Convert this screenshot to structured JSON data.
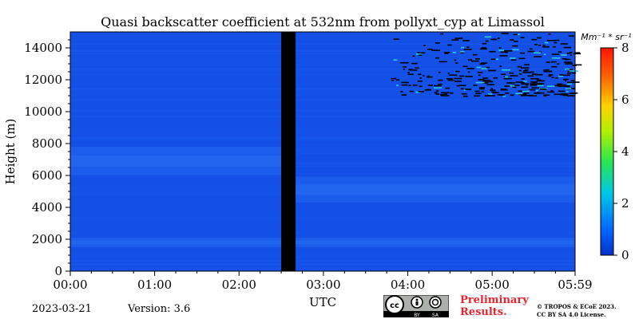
{
  "chart_data": {
    "type": "heatmap",
    "title": "Quasi backscatter coefficient at 532nm from pollyxt_cyp at Limassol",
    "xlabel": "UTC",
    "ylabel": "Height (m)",
    "x_ticks": [
      "00:00",
      "01:00",
      "02:00",
      "03:00",
      "04:00",
      "05:00",
      "05:59"
    ],
    "x_range_hours": [
      0,
      5.983
    ],
    "y_ticks": [
      0,
      2000,
      4000,
      6000,
      8000,
      10000,
      12000,
      14000
    ],
    "ylim": [
      0,
      15000
    ],
    "colorbar": {
      "label": "Mm⁻¹ * sr⁻¹",
      "ticks": [
        0,
        2,
        4,
        6,
        8
      ],
      "range": [
        0,
        8
      ],
      "colormap": "jet"
    },
    "no_data_gap_hours": [
      2.5,
      2.67
    ],
    "layers": [
      {
        "description_height_m": [
          1500,
          2100
        ],
        "time_hours": [
          0,
          5.98
        ],
        "value": 0.6
      },
      {
        "description_height_m": [
          6000,
          7800
        ],
        "time_hours": [
          0,
          2.5
        ],
        "value": 0.5
      },
      {
        "description_height_m": [
          4300,
          5900
        ],
        "time_hours": [
          2.67,
          5.98
        ],
        "value": 0.5
      }
    ],
    "noisy_region": {
      "height_m": [
        11000,
        15000
      ],
      "time_hours": [
        3.8,
        5.98
      ]
    }
  },
  "footer": {
    "date": "2023-03-21",
    "version": "Version: 3.6",
    "preliminary_line1": "Preliminary",
    "preliminary_line2": "Results.",
    "copyright_line1": "© TROPOS & ECoE 2023.",
    "copyright_line2": "CC BY SA 4.0 License.",
    "license_badge": [
      "BY",
      "SA"
    ]
  },
  "colors": {
    "background_blue": "#1450e6",
    "gap": "#000000"
  }
}
